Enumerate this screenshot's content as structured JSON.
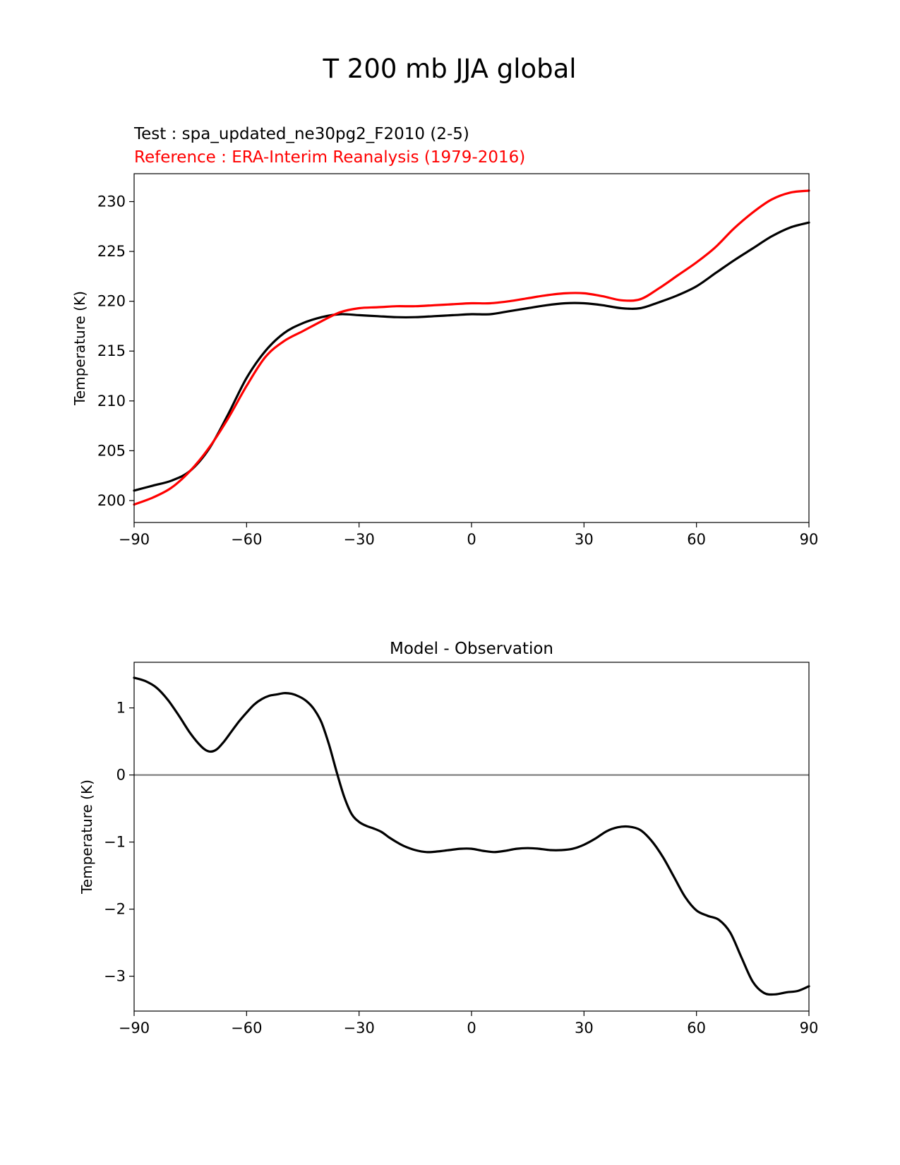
{
  "figure": {
    "suptitle": "T 200 mb JJA global"
  },
  "chart_data": [
    {
      "type": "line",
      "id": "top",
      "title": "",
      "legend_labels": [
        "Test : spa_updated_ne30pg2_F2010 (2-5)",
        "Reference : ERA-Interim Reanalysis (1979-2016)"
      ],
      "legend_colors": [
        "#000000",
        "#ff0000"
      ],
      "legend_placement": "above-left",
      "xlabel": "",
      "ylabel": "Temperature (K)",
      "xlim": [
        -90,
        90
      ],
      "ylim": [
        197.8,
        232.8
      ],
      "xticks": [
        -90,
        -60,
        -30,
        0,
        30,
        60,
        90
      ],
      "xtick_labels": [
        "−90",
        "−60",
        "−30",
        "0",
        "30",
        "60",
        "90"
      ],
      "yticks": [
        200,
        205,
        210,
        215,
        220,
        225,
        230
      ],
      "ytick_labels": [
        "200",
        "205",
        "210",
        "215",
        "220",
        "225",
        "230"
      ],
      "grid": false,
      "series": [
        {
          "name": "Test : spa_updated_ne30pg2_F2010 (2-5)",
          "color": "#000000",
          "x": [
            -90,
            -85,
            -80,
            -75,
            -70,
            -65,
            -60,
            -55,
            -50,
            -45,
            -40,
            -35,
            -30,
            -25,
            -20,
            -15,
            -10,
            -5,
            0,
            5,
            10,
            15,
            20,
            25,
            30,
            35,
            40,
            45,
            50,
            55,
            60,
            65,
            70,
            75,
            80,
            85,
            90
          ],
          "y": [
            201.0,
            201.5,
            202.0,
            203.0,
            205.2,
            208.6,
            212.3,
            215.0,
            216.8,
            217.8,
            218.4,
            218.7,
            218.6,
            218.5,
            218.4,
            218.4,
            218.5,
            218.6,
            218.7,
            218.7,
            219.0,
            219.3,
            219.6,
            219.8,
            219.8,
            219.6,
            219.3,
            219.3,
            219.9,
            220.6,
            221.5,
            222.8,
            224.1,
            225.3,
            226.5,
            227.4,
            227.9
          ]
        },
        {
          "name": "Reference : ERA-Interim Reanalysis (1979-2016)",
          "color": "#ff0000",
          "x": [
            -90,
            -85,
            -80,
            -75,
            -70,
            -65,
            -60,
            -55,
            -50,
            -45,
            -40,
            -35,
            -30,
            -25,
            -20,
            -15,
            -10,
            -5,
            0,
            5,
            10,
            15,
            20,
            25,
            30,
            35,
            40,
            45,
            50,
            55,
            60,
            65,
            70,
            75,
            80,
            85,
            90
          ],
          "y": [
            199.6,
            200.3,
            201.3,
            203.0,
            205.3,
            208.2,
            211.5,
            214.4,
            216.0,
            217.0,
            218.0,
            218.9,
            219.3,
            219.4,
            219.5,
            219.5,
            219.6,
            219.7,
            219.8,
            219.8,
            220.0,
            220.3,
            220.6,
            220.8,
            220.8,
            220.5,
            220.1,
            220.2,
            221.3,
            222.6,
            223.9,
            225.4,
            227.3,
            228.9,
            230.2,
            230.9,
            231.1
          ]
        }
      ]
    },
    {
      "type": "line",
      "id": "bottom",
      "title": "Model - Observation",
      "xlabel": "",
      "ylabel": "Temperature (K)",
      "xlim": [
        -90,
        90
      ],
      "ylim": [
        -3.52,
        1.68
      ],
      "xticks": [
        -90,
        -60,
        -30,
        0,
        30,
        60,
        90
      ],
      "xtick_labels": [
        "−90",
        "−60",
        "−30",
        "0",
        "30",
        "60",
        "90"
      ],
      "yticks": [
        -3,
        -2,
        -1,
        0,
        1
      ],
      "ytick_labels": [
        "−3",
        "−2",
        "−1",
        "0",
        "1"
      ],
      "grid": false,
      "zero_line": {
        "value": 0,
        "color": "#808080"
      },
      "series": [
        {
          "name": "Model - Observation",
          "color": "#000000",
          "x": [
            -90,
            -87,
            -84,
            -81,
            -78,
            -75,
            -72,
            -70,
            -68,
            -66,
            -64,
            -62,
            -60,
            -58,
            -56,
            -54,
            -52,
            -50,
            -48,
            -46,
            -44,
            -42,
            -40,
            -38,
            -36,
            -34,
            -32,
            -30,
            -28,
            -26,
            -24,
            -22,
            -20,
            -18,
            -15,
            -12,
            -9,
            -6,
            -3,
            0,
            3,
            6,
            9,
            12,
            15,
            18,
            21,
            24,
            27,
            30,
            33,
            36,
            39,
            42,
            45,
            48,
            51,
            54,
            57,
            60,
            63,
            66,
            69,
            72,
            75,
            78,
            81,
            84,
            87,
            90
          ],
          "y": [
            1.45,
            1.4,
            1.3,
            1.12,
            0.88,
            0.62,
            0.42,
            0.35,
            0.38,
            0.5,
            0.65,
            0.8,
            0.93,
            1.05,
            1.13,
            1.18,
            1.2,
            1.22,
            1.21,
            1.17,
            1.1,
            0.98,
            0.78,
            0.45,
            0.05,
            -0.32,
            -0.58,
            -0.7,
            -0.76,
            -0.8,
            -0.85,
            -0.93,
            -1.0,
            -1.06,
            -1.12,
            -1.15,
            -1.14,
            -1.12,
            -1.1,
            -1.1,
            -1.13,
            -1.15,
            -1.13,
            -1.1,
            -1.09,
            -1.1,
            -1.12,
            -1.12,
            -1.1,
            -1.04,
            -0.95,
            -0.84,
            -0.78,
            -0.77,
            -0.82,
            -0.98,
            -1.22,
            -1.52,
            -1.82,
            -2.02,
            -2.1,
            -2.16,
            -2.35,
            -2.72,
            -3.08,
            -3.25,
            -3.27,
            -3.24,
            -3.22,
            -3.15
          ]
        }
      ]
    }
  ]
}
